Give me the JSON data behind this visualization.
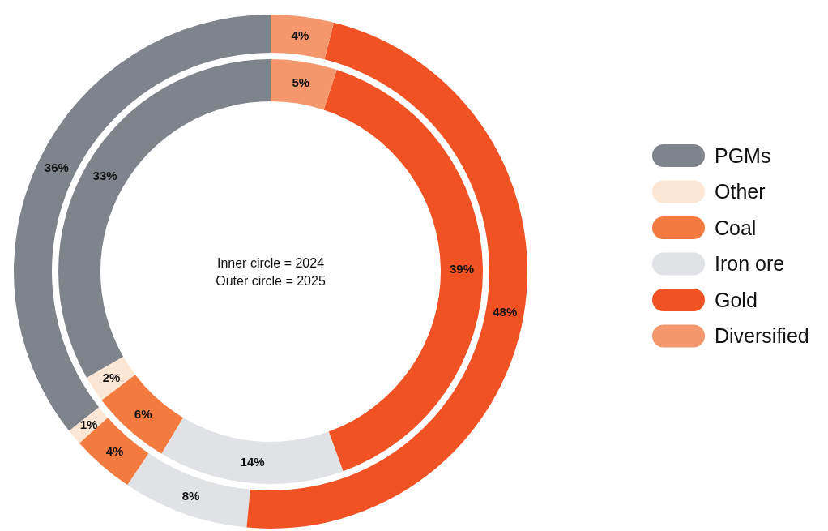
{
  "chart_data": {
    "type": "donut",
    "categories": [
      "PGMs",
      "Other",
      "Coal",
      "Iron ore",
      "Gold",
      "Diversified"
    ],
    "colors": [
      "#7f838c",
      "#fde6d4",
      "#f47b3f",
      "#e0e2e6",
      "#f15224",
      "#f5976c"
    ],
    "series": [
      {
        "values": [
          33,
          2,
          6,
          14,
          39,
          5
        ],
        "value_labels": [
          "33%",
          "2%",
          "6%",
          "14%",
          "39%",
          "5%"
        ]
      },
      {
        "values": [
          36,
          1,
          4,
          8,
          48,
          4
        ],
        "value_labels": [
          "36%",
          "1%",
          "4%",
          "8%",
          "48%",
          "4%"
        ]
      }
    ],
    "annotations": [
      "Inner circle = 2024",
      "Outer circle = 2025"
    ],
    "legend": "right"
  }
}
